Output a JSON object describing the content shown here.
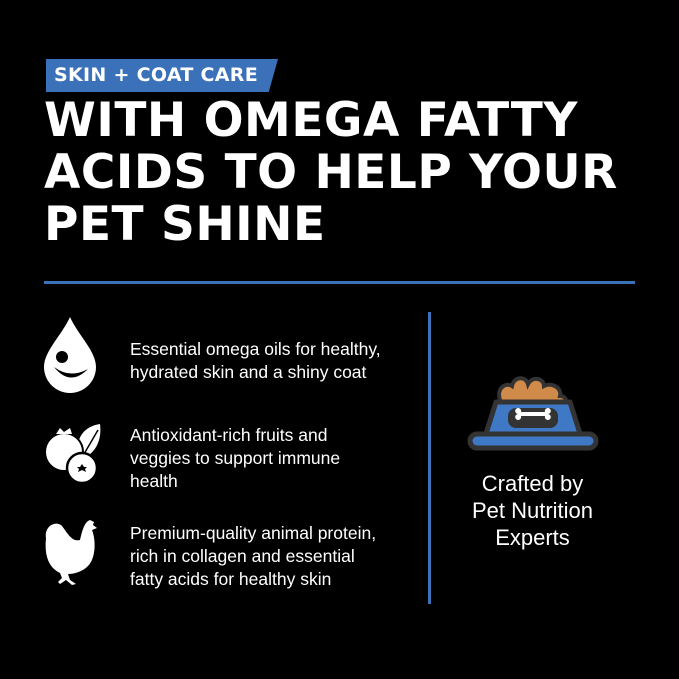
{
  "badge": {
    "label": "SKIN + COAT CARE"
  },
  "headline": {
    "lines": [
      "WITH OMEGA FATTY",
      "ACIDS TO HELP YOUR",
      "PET SHINE"
    ]
  },
  "features": [
    {
      "icon": "water-drop-smile-icon",
      "lines": [
        "Essential omega oils for healthy,",
        "hydrated skin and a shiny coat"
      ]
    },
    {
      "icon": "fruits-veggies-icon",
      "lines": [
        "Antioxidant-rich fruits and",
        "veggies to support immune",
        "health"
      ]
    },
    {
      "icon": "chicken-icon",
      "lines": [
        "Premium-quality animal protein,",
        "rich in collagen and essential",
        "fatty acids for healthy skin"
      ]
    }
  ],
  "crafted": {
    "icon": "pet-food-bowl-icon",
    "lines": [
      "Crafted by",
      "Pet Nutrition",
      "Experts"
    ]
  },
  "colors": {
    "accent": "#3b71b8",
    "background": "#000000",
    "kibble": "#d08a4a",
    "bowl": "#3f78c4"
  }
}
